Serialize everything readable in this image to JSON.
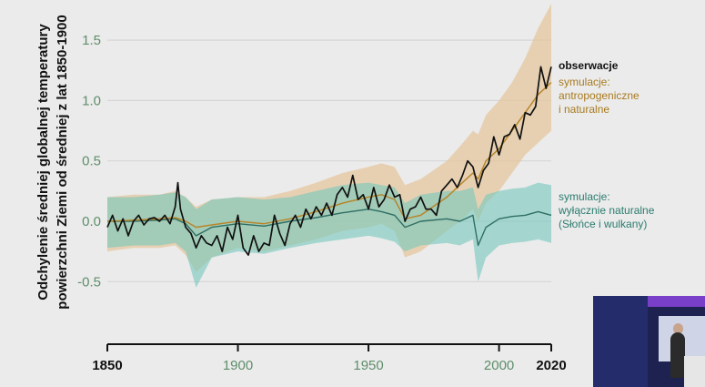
{
  "chart_data": {
    "type": "line",
    "y_axis_label_lines": [
      "Odchylenie średniej globalnej temperatury",
      "powierzchni Ziemi od średniej z lat 1850-1900"
    ],
    "xlim": [
      1850,
      2020
    ],
    "ylim": [
      -1.0,
      1.85
    ],
    "x_ticks": [
      {
        "value": 1850,
        "label": "1850",
        "bold": true
      },
      {
        "value": 1900,
        "label": "1900",
        "bold": false
      },
      {
        "value": 1950,
        "label": "1950",
        "bold": false
      },
      {
        "value": 2000,
        "label": "2000",
        "bold": false
      },
      {
        "value": 2020,
        "label": "2020",
        "bold": true
      }
    ],
    "y_ticks": [
      {
        "value": 1.5,
        "label": "1.5"
      },
      {
        "value": 1.0,
        "label": "1.0"
      },
      {
        "value": 0.5,
        "label": "0.5"
      },
      {
        "value": 0.0,
        "label": "0.0"
      },
      {
        "value": -0.5,
        "label": "-0.5"
      }
    ],
    "grid": true,
    "legend_placement": "right",
    "legend": [
      {
        "lines": [
          "obserwacje"
        ],
        "color": "#111111",
        "weight": "bold"
      },
      {
        "lines": [
          "symulacje:",
          "antropogeniczne",
          "i naturalne"
        ],
        "color": "#a87a1e",
        "weight": "normal"
      },
      {
        "lines": [
          "symulacje:",
          "wyłącznie naturalne",
          "(Słońce i wulkany)"
        ],
        "color": "#2a7c6f",
        "weight": "normal"
      }
    ],
    "colors": {
      "observations": "#111111",
      "anthro_line": "#b7862a",
      "anthro_band": "#e6c49a",
      "natural_line": "#2f6e63",
      "natural_band": "#74c8bd",
      "grid": "#d6d6d6",
      "tick_green": "#5e8e6a",
      "plot_bg": "#ebebeb"
    },
    "series": [
      {
        "name": "obserwacje",
        "x": [
          1850,
          1852,
          1854,
          1856,
          1858,
          1860,
          1862,
          1864,
          1866,
          1868,
          1870,
          1872,
          1874,
          1876,
          1877,
          1878,
          1880,
          1882,
          1884,
          1886,
          1888,
          1890,
          1892,
          1894,
          1896,
          1898,
          1900,
          1902,
          1904,
          1906,
          1908,
          1910,
          1912,
          1914,
          1916,
          1918,
          1920,
          1922,
          1924,
          1926,
          1928,
          1930,
          1932,
          1934,
          1936,
          1938,
          1940,
          1942,
          1944,
          1946,
          1948,
          1950,
          1952,
          1954,
          1956,
          1958,
          1960,
          1962,
          1964,
          1966,
          1968,
          1970,
          1972,
          1974,
          1976,
          1978,
          1980,
          1982,
          1984,
          1986,
          1988,
          1990,
          1992,
          1994,
          1996,
          1998,
          2000,
          2002,
          2004,
          2006,
          2008,
          2010,
          2012,
          2014,
          2016,
          2018,
          2020
        ],
        "y": [
          -0.05,
          0.05,
          -0.08,
          0.02,
          -0.12,
          0.0,
          0.05,
          -0.03,
          0.02,
          0.03,
          0.0,
          0.05,
          -0.02,
          0.12,
          0.32,
          0.1,
          -0.05,
          -0.1,
          -0.22,
          -0.12,
          -0.18,
          -0.2,
          -0.12,
          -0.25,
          -0.05,
          -0.15,
          0.05,
          -0.22,
          -0.28,
          -0.12,
          -0.25,
          -0.18,
          -0.2,
          0.05,
          -0.1,
          -0.2,
          -0.02,
          0.05,
          -0.05,
          0.1,
          0.02,
          0.12,
          0.05,
          0.15,
          0.05,
          0.22,
          0.28,
          0.2,
          0.38,
          0.18,
          0.22,
          0.1,
          0.28,
          0.12,
          0.18,
          0.3,
          0.2,
          0.22,
          0.0,
          0.1,
          0.12,
          0.2,
          0.1,
          0.1,
          0.05,
          0.25,
          0.3,
          0.35,
          0.28,
          0.38,
          0.5,
          0.45,
          0.28,
          0.42,
          0.48,
          0.7,
          0.55,
          0.7,
          0.72,
          0.8,
          0.68,
          0.9,
          0.88,
          0.95,
          1.28,
          1.1,
          1.28
        ]
      },
      {
        "name": "symulacje: antropogeniczne i naturalne",
        "x": [
          1850,
          1860,
          1870,
          1876,
          1880,
          1884,
          1890,
          1900,
          1910,
          1920,
          1930,
          1940,
          1950,
          1955,
          1960,
          1964,
          1970,
          1980,
          1985,
          1990,
          1992,
          1995,
          2000,
          2005,
          2010,
          2015,
          2020
        ],
        "y": [
          0.0,
          0.01,
          0.02,
          0.03,
          0.0,
          -0.05,
          -0.03,
          0.0,
          -0.02,
          0.02,
          0.08,
          0.15,
          0.2,
          0.22,
          0.18,
          0.02,
          0.05,
          0.2,
          0.3,
          0.4,
          0.35,
          0.5,
          0.6,
          0.75,
          0.9,
          1.05,
          1.15
        ],
        "band_low": [
          -0.25,
          -0.22,
          -0.22,
          -0.2,
          -0.28,
          -0.42,
          -0.3,
          -0.22,
          -0.25,
          -0.2,
          -0.15,
          -0.08,
          -0.05,
          -0.02,
          -0.08,
          -0.3,
          -0.25,
          -0.08,
          0.0,
          0.1,
          0.0,
          0.15,
          0.25,
          0.4,
          0.55,
          0.65,
          0.75
        ],
        "band_high": [
          0.2,
          0.22,
          0.22,
          0.25,
          0.2,
          0.12,
          0.18,
          0.2,
          0.2,
          0.25,
          0.32,
          0.4,
          0.45,
          0.48,
          0.45,
          0.3,
          0.35,
          0.5,
          0.62,
          0.75,
          0.72,
          0.88,
          1.0,
          1.15,
          1.35,
          1.6,
          1.8
        ]
      },
      {
        "name": "symulacje: wyłącznie naturalne",
        "x": [
          1850,
          1860,
          1870,
          1876,
          1880,
          1884,
          1890,
          1900,
          1910,
          1920,
          1930,
          1940,
          1950,
          1955,
          1960,
          1964,
          1970,
          1980,
          1985,
          1990,
          1992,
          1995,
          2000,
          2005,
          2010,
          2015,
          2020
        ],
        "y": [
          0.0,
          0.0,
          0.01,
          0.02,
          -0.02,
          -0.12,
          -0.05,
          -0.02,
          -0.04,
          0.0,
          0.03,
          0.07,
          0.1,
          0.08,
          0.05,
          -0.05,
          0.0,
          0.02,
          0.0,
          0.05,
          -0.2,
          -0.05,
          0.02,
          0.04,
          0.05,
          0.08,
          0.05
        ],
        "band_low": [
          -0.22,
          -0.2,
          -0.2,
          -0.18,
          -0.25,
          -0.55,
          -0.3,
          -0.25,
          -0.27,
          -0.22,
          -0.18,
          -0.15,
          -0.12,
          -0.14,
          -0.17,
          -0.25,
          -0.2,
          -0.18,
          -0.2,
          -0.15,
          -0.5,
          -0.3,
          -0.2,
          -0.18,
          -0.17,
          -0.15,
          -0.18
        ],
        "band_high": [
          0.2,
          0.2,
          0.22,
          0.24,
          0.2,
          0.1,
          0.18,
          0.2,
          0.18,
          0.2,
          0.25,
          0.3,
          0.32,
          0.3,
          0.28,
          0.15,
          0.22,
          0.25,
          0.25,
          0.28,
          0.1,
          0.22,
          0.25,
          0.27,
          0.28,
          0.32,
          0.3
        ]
      }
    ]
  }
}
